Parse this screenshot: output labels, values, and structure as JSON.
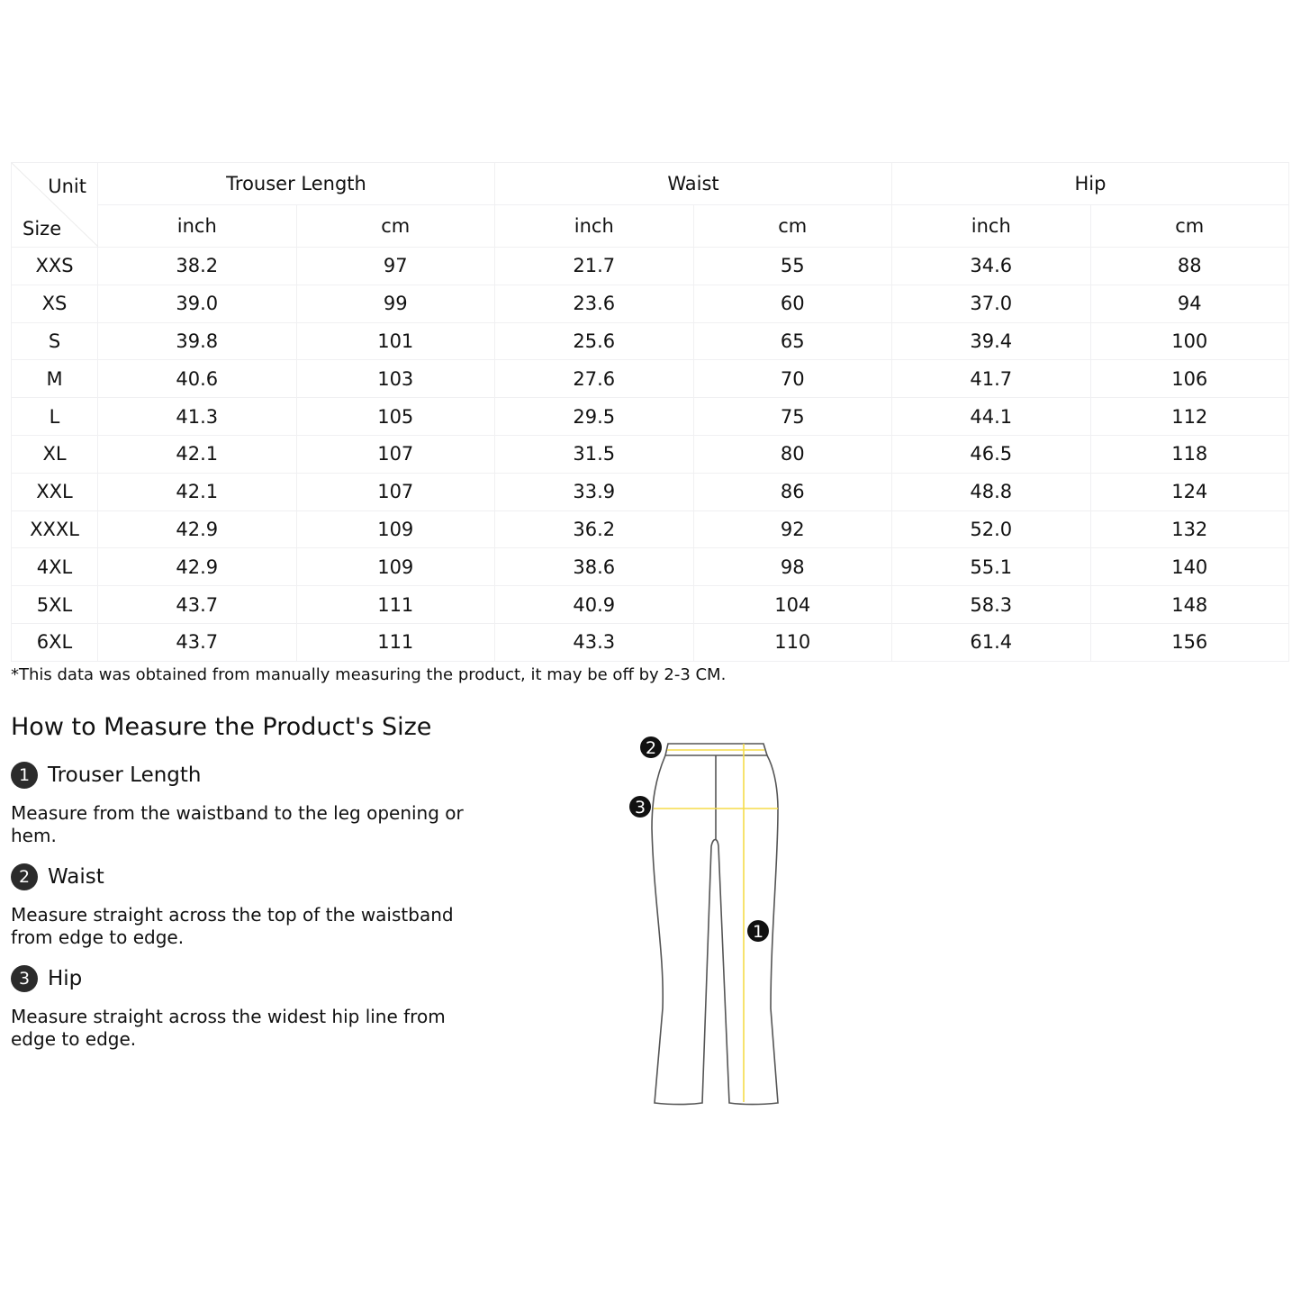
{
  "table": {
    "corner": {
      "unit": "Unit",
      "size": "Size"
    },
    "groups": [
      "Trouser Length",
      "Waist",
      "Hip"
    ],
    "units": [
      "inch",
      "cm",
      "inch",
      "cm",
      "inch",
      "cm"
    ],
    "rows": [
      [
        "XXS",
        "38.2",
        "97",
        "21.7",
        "55",
        "34.6",
        "88"
      ],
      [
        "XS",
        "39.0",
        "99",
        "23.6",
        "60",
        "37.0",
        "94"
      ],
      [
        "S",
        "39.8",
        "101",
        "25.6",
        "65",
        "39.4",
        "100"
      ],
      [
        "M",
        "40.6",
        "103",
        "27.6",
        "70",
        "41.7",
        "106"
      ],
      [
        "L",
        "41.3",
        "105",
        "29.5",
        "75",
        "44.1",
        "112"
      ],
      [
        "XL",
        "42.1",
        "107",
        "31.5",
        "80",
        "46.5",
        "118"
      ],
      [
        "XXL",
        "42.1",
        "107",
        "33.9",
        "86",
        "48.8",
        "124"
      ],
      [
        "XXXL",
        "42.9",
        "109",
        "36.2",
        "92",
        "52.0",
        "132"
      ],
      [
        "4XL",
        "42.9",
        "109",
        "38.6",
        "98",
        "55.1",
        "140"
      ],
      [
        "5XL",
        "43.7",
        "111",
        "40.9",
        "104",
        "58.3",
        "148"
      ],
      [
        "6XL",
        "43.7",
        "111",
        "43.3",
        "110",
        "61.4",
        "156"
      ]
    ]
  },
  "note": "*This data was obtained from manually measuring the product, it may be off by 2-3 CM.",
  "howto": {
    "title": "How to Measure the Product's Size",
    "steps": [
      {
        "num": "1",
        "title": "Trouser Length",
        "desc": "Measure from the waistband to the leg opening or hem."
      },
      {
        "num": "2",
        "title": "Waist",
        "desc": "Measure straight across the top of the waistband from edge to edge."
      },
      {
        "num": "3",
        "title": "Hip",
        "desc": "Measure straight across the widest hip line from edge to edge."
      }
    ]
  },
  "diagram": {
    "markers": [
      "1",
      "2",
      "3"
    ],
    "line_color": "#f5dc4a",
    "outline_color": "#555555"
  }
}
